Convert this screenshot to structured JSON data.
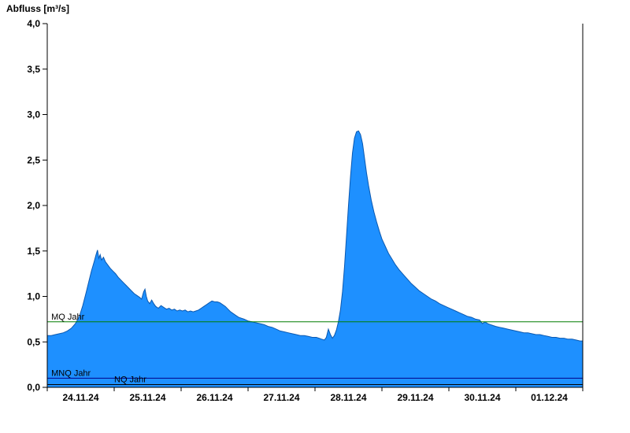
{
  "title": "Abfluss [m³/s]",
  "colors": {
    "area_fill": "#1e90ff",
    "area_stroke": "#0a58b0",
    "axis": "#000000"
  },
  "chart_data": {
    "type": "area",
    "title": "Abfluss [m³/s]",
    "ylabel": "Abfluss [m³/s]",
    "xlabel": "",
    "ylim": [
      0.0,
      4.0
    ],
    "ytick_step": 0.5,
    "ytick_labels": [
      "0,0",
      "0,5",
      "1,0",
      "1,5",
      "2,0",
      "2,5",
      "3,0",
      "3,5",
      "4,0"
    ],
    "x_range_days": 8,
    "x_tick_labels": [
      "24.11.24",
      "25.11.24",
      "26.11.24",
      "27.11.24",
      "28.11.24",
      "29.11.24",
      "30.11.24",
      "01.12.24"
    ],
    "grid": false,
    "legend": false,
    "reference_lines": [
      {
        "label": "MQ Jahr",
        "value": 0.72,
        "color": "#007d00",
        "label_x_day": 0.06
      },
      {
        "label": "MNQ Jahr",
        "value": 0.1,
        "color": "#00008b",
        "label_x_day": 0.06
      },
      {
        "label": "NQ Jahr",
        "value": 0.03,
        "color": "#000000",
        "label_x_day": 1.0
      }
    ],
    "series": [
      {
        "name": "Abfluss",
        "unit": "m³/s",
        "points": [
          [
            0.0,
            0.57
          ],
          [
            0.06,
            0.57
          ],
          [
            0.12,
            0.58
          ],
          [
            0.18,
            0.59
          ],
          [
            0.24,
            0.6
          ],
          [
            0.3,
            0.62
          ],
          [
            0.36,
            0.65
          ],
          [
            0.42,
            0.7
          ],
          [
            0.48,
            0.78
          ],
          [
            0.53,
            0.9
          ],
          [
            0.58,
            1.04
          ],
          [
            0.62,
            1.16
          ],
          [
            0.66,
            1.28
          ],
          [
            0.7,
            1.38
          ],
          [
            0.73,
            1.46
          ],
          [
            0.75,
            1.51
          ],
          [
            0.77,
            1.42
          ],
          [
            0.79,
            1.46
          ],
          [
            0.81,
            1.4
          ],
          [
            0.84,
            1.43
          ],
          [
            0.87,
            1.38
          ],
          [
            0.9,
            1.35
          ],
          [
            0.94,
            1.31
          ],
          [
            0.98,
            1.28
          ],
          [
            1.02,
            1.25
          ],
          [
            1.06,
            1.21
          ],
          [
            1.1,
            1.18
          ],
          [
            1.14,
            1.15
          ],
          [
            1.18,
            1.12
          ],
          [
            1.22,
            1.09
          ],
          [
            1.26,
            1.06
          ],
          [
            1.3,
            1.03
          ],
          [
            1.34,
            1.01
          ],
          [
            1.38,
            0.99
          ],
          [
            1.41,
            0.97
          ],
          [
            1.44,
            1.05
          ],
          [
            1.46,
            1.08
          ],
          [
            1.48,
            1.0
          ],
          [
            1.5,
            0.95
          ],
          [
            1.53,
            0.92
          ],
          [
            1.56,
            0.96
          ],
          [
            1.59,
            0.92
          ],
          [
            1.62,
            0.89
          ],
          [
            1.66,
            0.87
          ],
          [
            1.7,
            0.9
          ],
          [
            1.74,
            0.88
          ],
          [
            1.78,
            0.86
          ],
          [
            1.82,
            0.87
          ],
          [
            1.86,
            0.85
          ],
          [
            1.9,
            0.86
          ],
          [
            1.94,
            0.84
          ],
          [
            1.98,
            0.85
          ],
          [
            2.02,
            0.84
          ],
          [
            2.06,
            0.85
          ],
          [
            2.1,
            0.83
          ],
          [
            2.14,
            0.84
          ],
          [
            2.18,
            0.83
          ],
          [
            2.22,
            0.84
          ],
          [
            2.26,
            0.85
          ],
          [
            2.3,
            0.87
          ],
          [
            2.34,
            0.89
          ],
          [
            2.38,
            0.91
          ],
          [
            2.42,
            0.93
          ],
          [
            2.46,
            0.95
          ],
          [
            2.5,
            0.94
          ],
          [
            2.54,
            0.94
          ],
          [
            2.58,
            0.93
          ],
          [
            2.62,
            0.91
          ],
          [
            2.66,
            0.89
          ],
          [
            2.7,
            0.86
          ],
          [
            2.74,
            0.83
          ],
          [
            2.78,
            0.81
          ],
          [
            2.82,
            0.79
          ],
          [
            2.86,
            0.77
          ],
          [
            2.9,
            0.76
          ],
          [
            2.94,
            0.75
          ],
          [
            3.0,
            0.73
          ],
          [
            3.06,
            0.72
          ],
          [
            3.12,
            0.71
          ],
          [
            3.18,
            0.7
          ],
          [
            3.24,
            0.69
          ],
          [
            3.3,
            0.67
          ],
          [
            3.36,
            0.66
          ],
          [
            3.42,
            0.64
          ],
          [
            3.48,
            0.62
          ],
          [
            3.54,
            0.61
          ],
          [
            3.6,
            0.6
          ],
          [
            3.66,
            0.59
          ],
          [
            3.72,
            0.58
          ],
          [
            3.78,
            0.57
          ],
          [
            3.84,
            0.57
          ],
          [
            3.9,
            0.56
          ],
          [
            3.96,
            0.55
          ],
          [
            4.02,
            0.55
          ],
          [
            4.06,
            0.54
          ],
          [
            4.1,
            0.53
          ],
          [
            4.14,
            0.52
          ],
          [
            4.17,
            0.55
          ],
          [
            4.2,
            0.64
          ],
          [
            4.23,
            0.58
          ],
          [
            4.26,
            0.54
          ],
          [
            4.29,
            0.57
          ],
          [
            4.32,
            0.63
          ],
          [
            4.35,
            0.72
          ],
          [
            4.38,
            0.85
          ],
          [
            4.41,
            1.05
          ],
          [
            4.44,
            1.32
          ],
          [
            4.47,
            1.65
          ],
          [
            4.5,
            2.0
          ],
          [
            4.53,
            2.32
          ],
          [
            4.56,
            2.58
          ],
          [
            4.59,
            2.74
          ],
          [
            4.62,
            2.81
          ],
          [
            4.65,
            2.82
          ],
          [
            4.68,
            2.78
          ],
          [
            4.71,
            2.68
          ],
          [
            4.74,
            2.52
          ],
          [
            4.77,
            2.36
          ],
          [
            4.8,
            2.22
          ],
          [
            4.84,
            2.06
          ],
          [
            4.88,
            1.93
          ],
          [
            4.92,
            1.82
          ],
          [
            4.96,
            1.72
          ],
          [
            5.0,
            1.63
          ],
          [
            5.05,
            1.55
          ],
          [
            5.1,
            1.47
          ],
          [
            5.15,
            1.41
          ],
          [
            5.2,
            1.35
          ],
          [
            5.26,
            1.29
          ],
          [
            5.32,
            1.24
          ],
          [
            5.38,
            1.19
          ],
          [
            5.44,
            1.14
          ],
          [
            5.5,
            1.1
          ],
          [
            5.56,
            1.06
          ],
          [
            5.62,
            1.03
          ],
          [
            5.68,
            1.0
          ],
          [
            5.74,
            0.97
          ],
          [
            5.8,
            0.95
          ],
          [
            5.86,
            0.92
          ],
          [
            5.92,
            0.9
          ],
          [
            5.98,
            0.88
          ],
          [
            6.04,
            0.86
          ],
          [
            6.1,
            0.84
          ],
          [
            6.16,
            0.82
          ],
          [
            6.22,
            0.8
          ],
          [
            6.28,
            0.78
          ],
          [
            6.34,
            0.77
          ],
          [
            6.4,
            0.75
          ],
          [
            6.46,
            0.74
          ],
          [
            6.5,
            0.7
          ],
          [
            6.54,
            0.72
          ],
          [
            6.58,
            0.7
          ],
          [
            6.62,
            0.69
          ],
          [
            6.66,
            0.68
          ],
          [
            6.7,
            0.67
          ],
          [
            6.76,
            0.66
          ],
          [
            6.82,
            0.65
          ],
          [
            6.88,
            0.64
          ],
          [
            6.94,
            0.63
          ],
          [
            7.0,
            0.62
          ],
          [
            7.06,
            0.61
          ],
          [
            7.12,
            0.6
          ],
          [
            7.18,
            0.6
          ],
          [
            7.24,
            0.59
          ],
          [
            7.3,
            0.58
          ],
          [
            7.36,
            0.58
          ],
          [
            7.42,
            0.57
          ],
          [
            7.48,
            0.56
          ],
          [
            7.54,
            0.55
          ],
          [
            7.6,
            0.55
          ],
          [
            7.66,
            0.54
          ],
          [
            7.72,
            0.54
          ],
          [
            7.78,
            0.53
          ],
          [
            7.84,
            0.53
          ],
          [
            7.9,
            0.52
          ],
          [
            7.96,
            0.51
          ],
          [
            8.0,
            0.51
          ]
        ]
      }
    ]
  }
}
